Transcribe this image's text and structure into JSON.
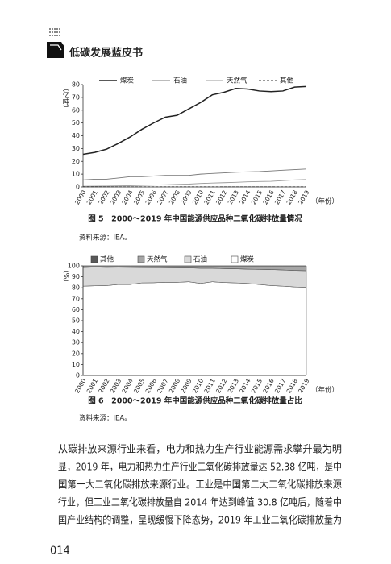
{
  "header": {
    "title": "低碳发展蓝皮书"
  },
  "chart_data": [
    {
      "type": "line",
      "title": "图 5　2000～2019 年中国能源供应品种二氧化碳排放量情况",
      "source": "资料来源：IEA。",
      "ylabel": "（亿吨）",
      "xlabel": "（年份）",
      "categories": [
        "2000",
        "2001",
        "2002",
        "2003",
        "2004",
        "2005",
        "2006",
        "2007",
        "2008",
        "2009",
        "2010",
        "2011",
        "2012",
        "2013",
        "2014",
        "2015",
        "2016",
        "2017",
        "2018",
        "2019"
      ],
      "ylim": [
        0,
        80
      ],
      "yticks": [
        0,
        10,
        20,
        30,
        40,
        50,
        60,
        70,
        80
      ],
      "series": [
        {
          "name": "煤炭",
          "color": "#222222",
          "line_style": "solid",
          "values": [
            25.5,
            27,
            29.5,
            34,
            39,
            45,
            50,
            54.5,
            56,
            61,
            66,
            72,
            74,
            77,
            76.5,
            75,
            74.5,
            75,
            78,
            78.5
          ]
        },
        {
          "name": "石油",
          "color": "#777777",
          "line_style": "solid",
          "values": [
            5.5,
            6,
            6,
            7,
            8,
            8,
            8.5,
            9,
            9,
            9,
            10,
            10.5,
            11,
            11.5,
            11.8,
            12,
            12.5,
            13,
            13.5,
            14
          ]
        },
        {
          "name": "天然气",
          "color": "#999999",
          "line_style": "solid",
          "values": [
            0.5,
            0.6,
            0.7,
            0.8,
            1,
            1.2,
            1.5,
            1.7,
            2,
            2.2,
            2.7,
            3,
            3.3,
            3.6,
            4,
            4.2,
            4.4,
            4.9,
            5.5,
            5.8
          ]
        },
        {
          "name": "其他",
          "color": "#333333",
          "line_style": "dashed",
          "values": [
            0.1,
            0.1,
            0.1,
            0.1,
            0.1,
            0.1,
            0.1,
            0.1,
            0.1,
            0.1,
            0.1,
            0.1,
            0.1,
            0.1,
            0.1,
            0.1,
            0.1,
            0.1,
            0.1,
            0.1
          ]
        }
      ]
    },
    {
      "type": "stacked_area",
      "title": "图 6　2000～2019 年中国能源供应品种二氧化碳排放量占比",
      "source": "资料来源：IEA。",
      "ylabel": "（%）",
      "xlabel": "（年份）",
      "categories": [
        "2000",
        "2001",
        "2002",
        "2003",
        "2004",
        "2005",
        "2006",
        "2007",
        "2008",
        "2009",
        "2010",
        "2011",
        "2012",
        "2013",
        "2014",
        "2015",
        "2016",
        "2017",
        "2018",
        "2019"
      ],
      "ylim": [
        0,
        100
      ],
      "yticks": [
        0,
        10,
        20,
        30,
        40,
        50,
        60,
        70,
        80,
        90,
        100
      ],
      "series": [
        {
          "name": "煤炭",
          "color": "#ffffff",
          "values": [
            81.5,
            81.8,
            82,
            83,
            83,
            84.5,
            84.6,
            85,
            85,
            85.5,
            84,
            85.5,
            84.8,
            84.5,
            84,
            83,
            82,
            81.5,
            80.8,
            80.4
          ]
        },
        {
          "name": "石油",
          "color": "#d9d9d9",
          "values": [
            17,
            17,
            16.6,
            15.7,
            15.6,
            14,
            13.8,
            13.3,
            13.2,
            12.6,
            13.8,
            12.3,
            12.7,
            12.8,
            13,
            13.8,
            14.6,
            14.8,
            15,
            15.2
          ]
        },
        {
          "name": "天然气",
          "color": "#a6a6a6",
          "values": [
            1.4,
            1.1,
            1.3,
            1.2,
            1.3,
            1.4,
            1.5,
            1.6,
            1.7,
            1.8,
            2.1,
            2.1,
            2.4,
            2.6,
            2.9,
            3.1,
            3.3,
            3.6,
            4.1,
            4.3
          ]
        },
        {
          "name": "其他",
          "color": "#595959",
          "values": [
            0.1,
            0.1,
            0.1,
            0.1,
            0.1,
            0.1,
            0.1,
            0.1,
            0.1,
            0.1,
            0.1,
            0.1,
            0.1,
            0.1,
            0.1,
            0.1,
            0.1,
            0.1,
            0.1,
            0.1
          ]
        }
      ]
    }
  ],
  "body": {
    "lines": [
      "从碳排放来源行业来看，电力和热力生产行业能源需求攀升最为明",
      "显，2019 年，电力和热力生产行业二氧化碳排放量达 52.38 亿吨，是中",
      "国第一大二氧化碳排放来源行业。工业是中国第二大二氧化碳排放来源",
      "行业，但工业二氧化碳排放量自 2014 年达到峰值 30.8 亿吨后，随着中",
      "国产业结构的调整，呈现缓慢下降态势，2019 年工业二氧化碳排放量为"
    ]
  },
  "page_number": "014"
}
